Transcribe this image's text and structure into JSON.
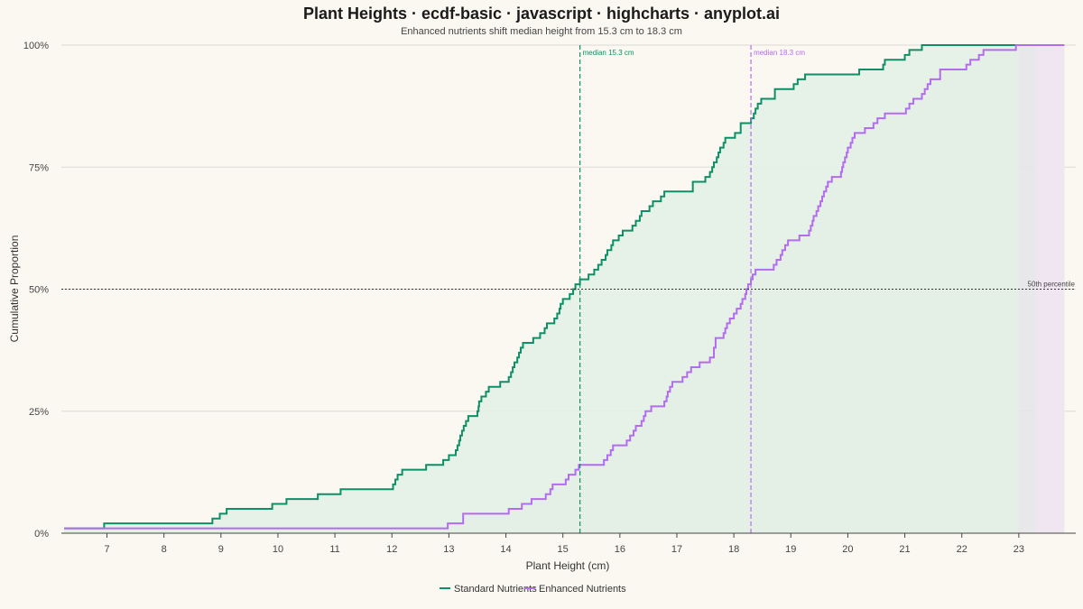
{
  "chart_data": {
    "type": "line",
    "step": true,
    "title": "Plant Heights · ecdf-basic · javascript · highcharts · anyplot.ai",
    "subtitle": "Enhanced nutrients shift median height from 15.3 cm to 18.3 cm",
    "xlabel": "Plant Height (cm)",
    "ylabel": "Cumulative Proportion",
    "xlim": [
      6.2,
      24.0
    ],
    "ylim": [
      0,
      1
    ],
    "x_ticks": [
      "7",
      "8",
      "9",
      "10",
      "11",
      "12",
      "13",
      "14",
      "15",
      "16",
      "17",
      "18",
      "19",
      "20",
      "21",
      "22",
      "23"
    ],
    "y_ticks": [
      "0%",
      "25%",
      "50%",
      "75%",
      "100%"
    ],
    "grid": true,
    "legend_position": "bottom-center",
    "reference_line": {
      "y": 0.5,
      "label": "50th percentile"
    },
    "medians": [
      {
        "x": 15.3,
        "label": "median 15.3 cm",
        "color": "#0E8F67"
      },
      {
        "x": 18.3,
        "label": "median 18.3 cm",
        "color": "#B36CF0"
      }
    ],
    "series": [
      {
        "name": "Standard Nutrients",
        "color": "#0E8F67",
        "fill": "#E3F0E6",
        "points": [
          [
            6.25,
            0.01
          ],
          [
            6.95,
            0.02
          ],
          [
            8.85,
            0.03
          ],
          [
            8.98,
            0.04
          ],
          [
            9.1,
            0.05
          ],
          [
            9.9,
            0.06
          ],
          [
            10.15,
            0.07
          ],
          [
            10.7,
            0.08
          ],
          [
            11.1,
            0.09
          ],
          [
            12.02,
            0.1
          ],
          [
            12.06,
            0.11
          ],
          [
            12.1,
            0.12
          ],
          [
            12.18,
            0.13
          ],
          [
            12.6,
            0.14
          ],
          [
            12.9,
            0.15
          ],
          [
            13.0,
            0.16
          ],
          [
            13.12,
            0.17
          ],
          [
            13.15,
            0.18
          ],
          [
            13.18,
            0.19
          ],
          [
            13.2,
            0.2
          ],
          [
            13.23,
            0.21
          ],
          [
            13.26,
            0.22
          ],
          [
            13.3,
            0.23
          ],
          [
            13.34,
            0.24
          ],
          [
            13.5,
            0.25
          ],
          [
            13.52,
            0.26
          ],
          [
            13.53,
            0.27
          ],
          [
            13.57,
            0.28
          ],
          [
            13.65,
            0.29
          ],
          [
            13.7,
            0.3
          ],
          [
            13.9,
            0.31
          ],
          [
            14.05,
            0.32
          ],
          [
            14.09,
            0.33
          ],
          [
            14.12,
            0.34
          ],
          [
            14.15,
            0.35
          ],
          [
            14.2,
            0.36
          ],
          [
            14.23,
            0.37
          ],
          [
            14.26,
            0.38
          ],
          [
            14.3,
            0.39
          ],
          [
            14.48,
            0.4
          ],
          [
            14.6,
            0.41
          ],
          [
            14.68,
            0.42
          ],
          [
            14.72,
            0.43
          ],
          [
            14.85,
            0.44
          ],
          [
            14.9,
            0.45
          ],
          [
            14.94,
            0.46
          ],
          [
            14.96,
            0.47
          ],
          [
            15.0,
            0.48
          ],
          [
            15.12,
            0.49
          ],
          [
            15.18,
            0.5
          ],
          [
            15.22,
            0.51
          ],
          [
            15.3,
            0.52
          ],
          [
            15.45,
            0.53
          ],
          [
            15.55,
            0.54
          ],
          [
            15.62,
            0.55
          ],
          [
            15.68,
            0.56
          ],
          [
            15.75,
            0.57
          ],
          [
            15.78,
            0.58
          ],
          [
            15.85,
            0.59
          ],
          [
            15.88,
            0.6
          ],
          [
            15.98,
            0.61
          ],
          [
            16.05,
            0.62
          ],
          [
            16.22,
            0.63
          ],
          [
            16.28,
            0.64
          ],
          [
            16.35,
            0.65
          ],
          [
            16.38,
            0.66
          ],
          [
            16.52,
            0.67
          ],
          [
            16.58,
            0.68
          ],
          [
            16.72,
            0.69
          ],
          [
            16.78,
            0.7
          ],
          [
            17.28,
            0.72
          ],
          [
            17.5,
            0.73
          ],
          [
            17.58,
            0.74
          ],
          [
            17.62,
            0.75
          ],
          [
            17.65,
            0.76
          ],
          [
            17.7,
            0.77
          ],
          [
            17.73,
            0.78
          ],
          [
            17.76,
            0.79
          ],
          [
            17.82,
            0.8
          ],
          [
            17.85,
            0.81
          ],
          [
            18.02,
            0.82
          ],
          [
            18.12,
            0.84
          ],
          [
            18.3,
            0.85
          ],
          [
            18.35,
            0.86
          ],
          [
            18.38,
            0.87
          ],
          [
            18.42,
            0.88
          ],
          [
            18.48,
            0.89
          ],
          [
            18.72,
            0.91
          ],
          [
            19.05,
            0.92
          ],
          [
            19.12,
            0.93
          ],
          [
            19.25,
            0.94
          ],
          [
            20.2,
            0.95
          ],
          [
            20.62,
            0.96
          ],
          [
            20.65,
            0.97
          ],
          [
            21.0,
            0.98
          ],
          [
            21.08,
            0.99
          ],
          [
            21.3,
            1.0
          ],
          [
            23.0,
            1.0
          ]
        ]
      },
      {
        "name": "Enhanced Nutrients",
        "color": "#B36CF0",
        "fill": "#E4E5E9",
        "points": [
          [
            6.25,
            0.01
          ],
          [
            12.98,
            0.02
          ],
          [
            13.25,
            0.04
          ],
          [
            14.05,
            0.05
          ],
          [
            14.28,
            0.06
          ],
          [
            14.45,
            0.07
          ],
          [
            14.7,
            0.08
          ],
          [
            14.78,
            0.09
          ],
          [
            14.82,
            0.1
          ],
          [
            15.05,
            0.11
          ],
          [
            15.1,
            0.12
          ],
          [
            15.22,
            0.13
          ],
          [
            15.28,
            0.14
          ],
          [
            15.72,
            0.15
          ],
          [
            15.78,
            0.16
          ],
          [
            15.84,
            0.17
          ],
          [
            15.88,
            0.18
          ],
          [
            16.12,
            0.19
          ],
          [
            16.18,
            0.2
          ],
          [
            16.24,
            0.21
          ],
          [
            16.28,
            0.22
          ],
          [
            16.38,
            0.23
          ],
          [
            16.42,
            0.24
          ],
          [
            16.45,
            0.25
          ],
          [
            16.55,
            0.26
          ],
          [
            16.78,
            0.27
          ],
          [
            16.82,
            0.28
          ],
          [
            16.84,
            0.29
          ],
          [
            16.88,
            0.3
          ],
          [
            16.92,
            0.31
          ],
          [
            17.1,
            0.32
          ],
          [
            17.18,
            0.33
          ],
          [
            17.25,
            0.34
          ],
          [
            17.4,
            0.35
          ],
          [
            17.58,
            0.36
          ],
          [
            17.65,
            0.38
          ],
          [
            17.68,
            0.4
          ],
          [
            17.82,
            0.41
          ],
          [
            17.85,
            0.42
          ],
          [
            17.88,
            0.43
          ],
          [
            17.93,
            0.44
          ],
          [
            18.0,
            0.45
          ],
          [
            18.05,
            0.46
          ],
          [
            18.12,
            0.47
          ],
          [
            18.15,
            0.48
          ],
          [
            18.2,
            0.49
          ],
          [
            18.22,
            0.5
          ],
          [
            18.25,
            0.51
          ],
          [
            18.3,
            0.52
          ],
          [
            18.33,
            0.53
          ],
          [
            18.38,
            0.54
          ],
          [
            18.7,
            0.55
          ],
          [
            18.75,
            0.56
          ],
          [
            18.82,
            0.57
          ],
          [
            18.85,
            0.58
          ],
          [
            18.9,
            0.59
          ],
          [
            18.95,
            0.6
          ],
          [
            19.15,
            0.61
          ],
          [
            19.32,
            0.62
          ],
          [
            19.35,
            0.63
          ],
          [
            19.38,
            0.64
          ],
          [
            19.4,
            0.65
          ],
          [
            19.45,
            0.66
          ],
          [
            19.48,
            0.67
          ],
          [
            19.52,
            0.68
          ],
          [
            19.55,
            0.69
          ],
          [
            19.58,
            0.7
          ],
          [
            19.62,
            0.71
          ],
          [
            19.65,
            0.72
          ],
          [
            19.72,
            0.73
          ],
          [
            19.88,
            0.74
          ],
          [
            19.9,
            0.75
          ],
          [
            19.92,
            0.76
          ],
          [
            19.95,
            0.77
          ],
          [
            19.98,
            0.78
          ],
          [
            20.0,
            0.79
          ],
          [
            20.05,
            0.8
          ],
          [
            20.08,
            0.81
          ],
          [
            20.12,
            0.82
          ],
          [
            20.3,
            0.83
          ],
          [
            20.45,
            0.84
          ],
          [
            20.52,
            0.85
          ],
          [
            20.65,
            0.86
          ],
          [
            21.02,
            0.87
          ],
          [
            21.08,
            0.88
          ],
          [
            21.15,
            0.89
          ],
          [
            21.3,
            0.9
          ],
          [
            21.35,
            0.91
          ],
          [
            21.4,
            0.92
          ],
          [
            21.45,
            0.93
          ],
          [
            21.62,
            0.94
          ],
          [
            21.62,
            0.95
          ],
          [
            22.08,
            0.96
          ],
          [
            22.15,
            0.97
          ],
          [
            22.3,
            0.98
          ],
          [
            22.38,
            0.99
          ],
          [
            22.95,
            1.0
          ],
          [
            23.8,
            1.0
          ]
        ]
      }
    ]
  }
}
